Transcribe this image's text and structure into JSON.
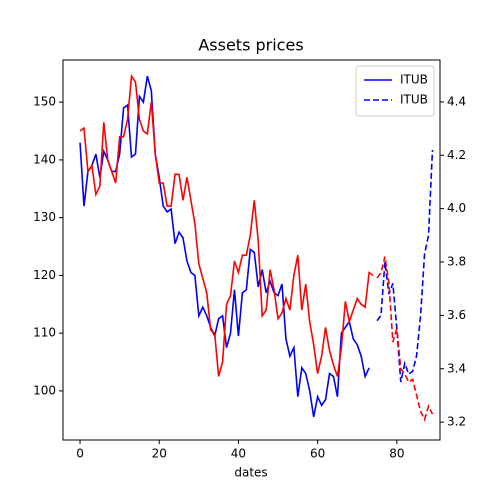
{
  "chart_data": {
    "type": "line",
    "title": "Assets prices",
    "xlabel": "dates",
    "xlim": [
      -4.3,
      90.9
    ],
    "xticks": [
      0,
      20,
      40,
      60,
      80
    ],
    "ylim": [
      91.5,
      157.3
    ],
    "yticks": [
      100,
      110,
      120,
      130,
      140,
      150
    ],
    "y2lim": [
      3.133,
      4.557
    ],
    "y2ticks": [
      3.2,
      3.4,
      3.6,
      3.8,
      {
        "value": 4.0,
        "label": "4.0"
      },
      4.2,
      4.4
    ],
    "grid": false,
    "legend": "upper right",
    "series": [
      {
        "name": "ITUB",
        "color": "#0000ff",
        "style": "solid",
        "x": [
          0,
          1,
          2,
          3,
          4,
          5,
          6,
          7,
          8,
          9,
          10,
          11,
          12,
          13,
          14,
          15,
          16,
          17,
          18,
          19,
          20,
          21,
          22,
          23,
          24,
          25,
          26,
          27,
          28,
          29,
          30,
          31,
          32,
          33,
          34,
          35,
          36,
          37,
          38,
          39,
          40,
          41,
          42,
          43,
          44,
          45,
          46,
          47,
          48,
          49,
          50,
          51,
          52,
          53,
          54,
          55,
          56,
          57,
          58,
          59,
          60,
          61,
          62,
          63,
          64,
          65,
          66,
          67,
          68,
          69,
          70,
          71,
          72,
          73
        ],
        "values": [
          143,
          132,
          138,
          139,
          141,
          137,
          141.5,
          140,
          138,
          138,
          141,
          149,
          149.5,
          140.5,
          141,
          151,
          150,
          154.5,
          152,
          141,
          137,
          132,
          131,
          131.5,
          125.5,
          127.5,
          126.5,
          122.5,
          120.5,
          120,
          113,
          114.5,
          113,
          111,
          109.5,
          112.5,
          113,
          107.5,
          110,
          117.5,
          109.5,
          117,
          117.5,
          124.5,
          124,
          118,
          121,
          117,
          119,
          117,
          116.5,
          118.5,
          109,
          106,
          107.5,
          99,
          104,
          103,
          100,
          95.5,
          99,
          97.5,
          98.5,
          103,
          102.5,
          99,
          110,
          111,
          112,
          109,
          108,
          106,
          102.5,
          104
        ]
      },
      {
        "name": "ITUB",
        "color": "#0000ff",
        "style": "dashed",
        "axis": "y2",
        "x": [
          75,
          76,
          77,
          78,
          79,
          80,
          81,
          82,
          83,
          84,
          85,
          86,
          87,
          88,
          89
        ],
        "values": [
          3.58,
          3.6,
          3.8,
          3.68,
          3.72,
          3.55,
          3.35,
          3.42,
          3.38,
          3.39,
          3.45,
          3.6,
          3.83,
          3.9,
          4.22
        ]
      },
      {
        "color": "#ff0000",
        "style": "solid",
        "x": [
          0,
          1,
          2,
          3,
          4,
          5,
          6,
          7,
          8,
          9,
          10,
          11,
          12,
          13,
          14,
          15,
          16,
          17,
          18,
          19,
          20,
          21,
          22,
          23,
          24,
          25,
          26,
          27,
          28,
          29,
          30,
          31,
          32,
          33,
          34,
          35,
          36,
          37,
          38,
          39,
          40,
          41,
          42,
          43,
          44,
          45,
          46,
          47,
          48,
          49,
          50,
          51,
          52,
          53,
          54,
          55,
          56,
          57,
          58,
          59,
          60,
          61,
          62,
          63,
          64,
          65,
          66,
          67,
          68,
          69,
          70,
          71,
          72,
          73,
          74
        ],
        "values": [
          145,
          145.5,
          138,
          139,
          134,
          135.5,
          146.5,
          140,
          138,
          136,
          144,
          144,
          147,
          154.5,
          153.5,
          147,
          145,
          144.5,
          150,
          141,
          136,
          136,
          132,
          132,
          137.5,
          137.5,
          133,
          137,
          133,
          129,
          122,
          119.5,
          117,
          110.5,
          110,
          102.5,
          105,
          115,
          116.5,
          122.5,
          120.5,
          123.5,
          123.5,
          127,
          133,
          126,
          113,
          114,
          121,
          117.5,
          112.5,
          113.5,
          116,
          114,
          120,
          123.5,
          114,
          118.5,
          112,
          108,
          103,
          106,
          111,
          107,
          104.5,
          102.5,
          107.5,
          115.5,
          112,
          114,
          116,
          115,
          114.5,
          120.5,
          120
        ]
      },
      {
        "color": "#ff0000",
        "style": "dashed",
        "axis": "y2",
        "x": [
          75,
          76,
          77,
          78,
          79,
          80,
          81,
          82,
          83,
          84,
          85,
          86,
          87,
          88,
          89
        ],
        "values": [
          3.74,
          3.76,
          3.82,
          3.72,
          3.5,
          3.55,
          3.4,
          3.38,
          3.35,
          3.36,
          3.3,
          3.24,
          3.21,
          3.26,
          3.23
        ]
      }
    ]
  }
}
